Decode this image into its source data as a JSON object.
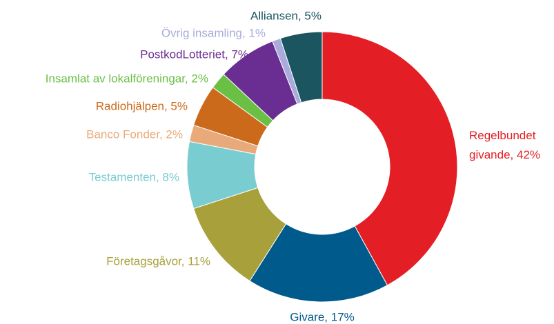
{
  "chart_data": {
    "type": "donut",
    "values": [
      42,
      17,
      11,
      8,
      2,
      5,
      2,
      7,
      1,
      5
    ],
    "value_labels": [
      "Regelbundet givande, 42%",
      "Givare, 17%",
      "Företagsgåvor, 11%",
      "Testamenten, 8%",
      "Banco Fonder, 2%",
      "Radiohjälpen, 5%",
      "Insamlat av lokalföreningar, 2%",
      "PostkodLotteriet, 7%",
      "Övrig insamling, 1%",
      "Alliansen, 5%"
    ],
    "colors": [
      "#e31e24",
      "#005a8c",
      "#a8a03a",
      "#79cdd0",
      "#e8aa7a",
      "#cc6a1c",
      "#6abf45",
      "#6a2d91",
      "#a9abdb",
      "#1b5560"
    ]
  }
}
